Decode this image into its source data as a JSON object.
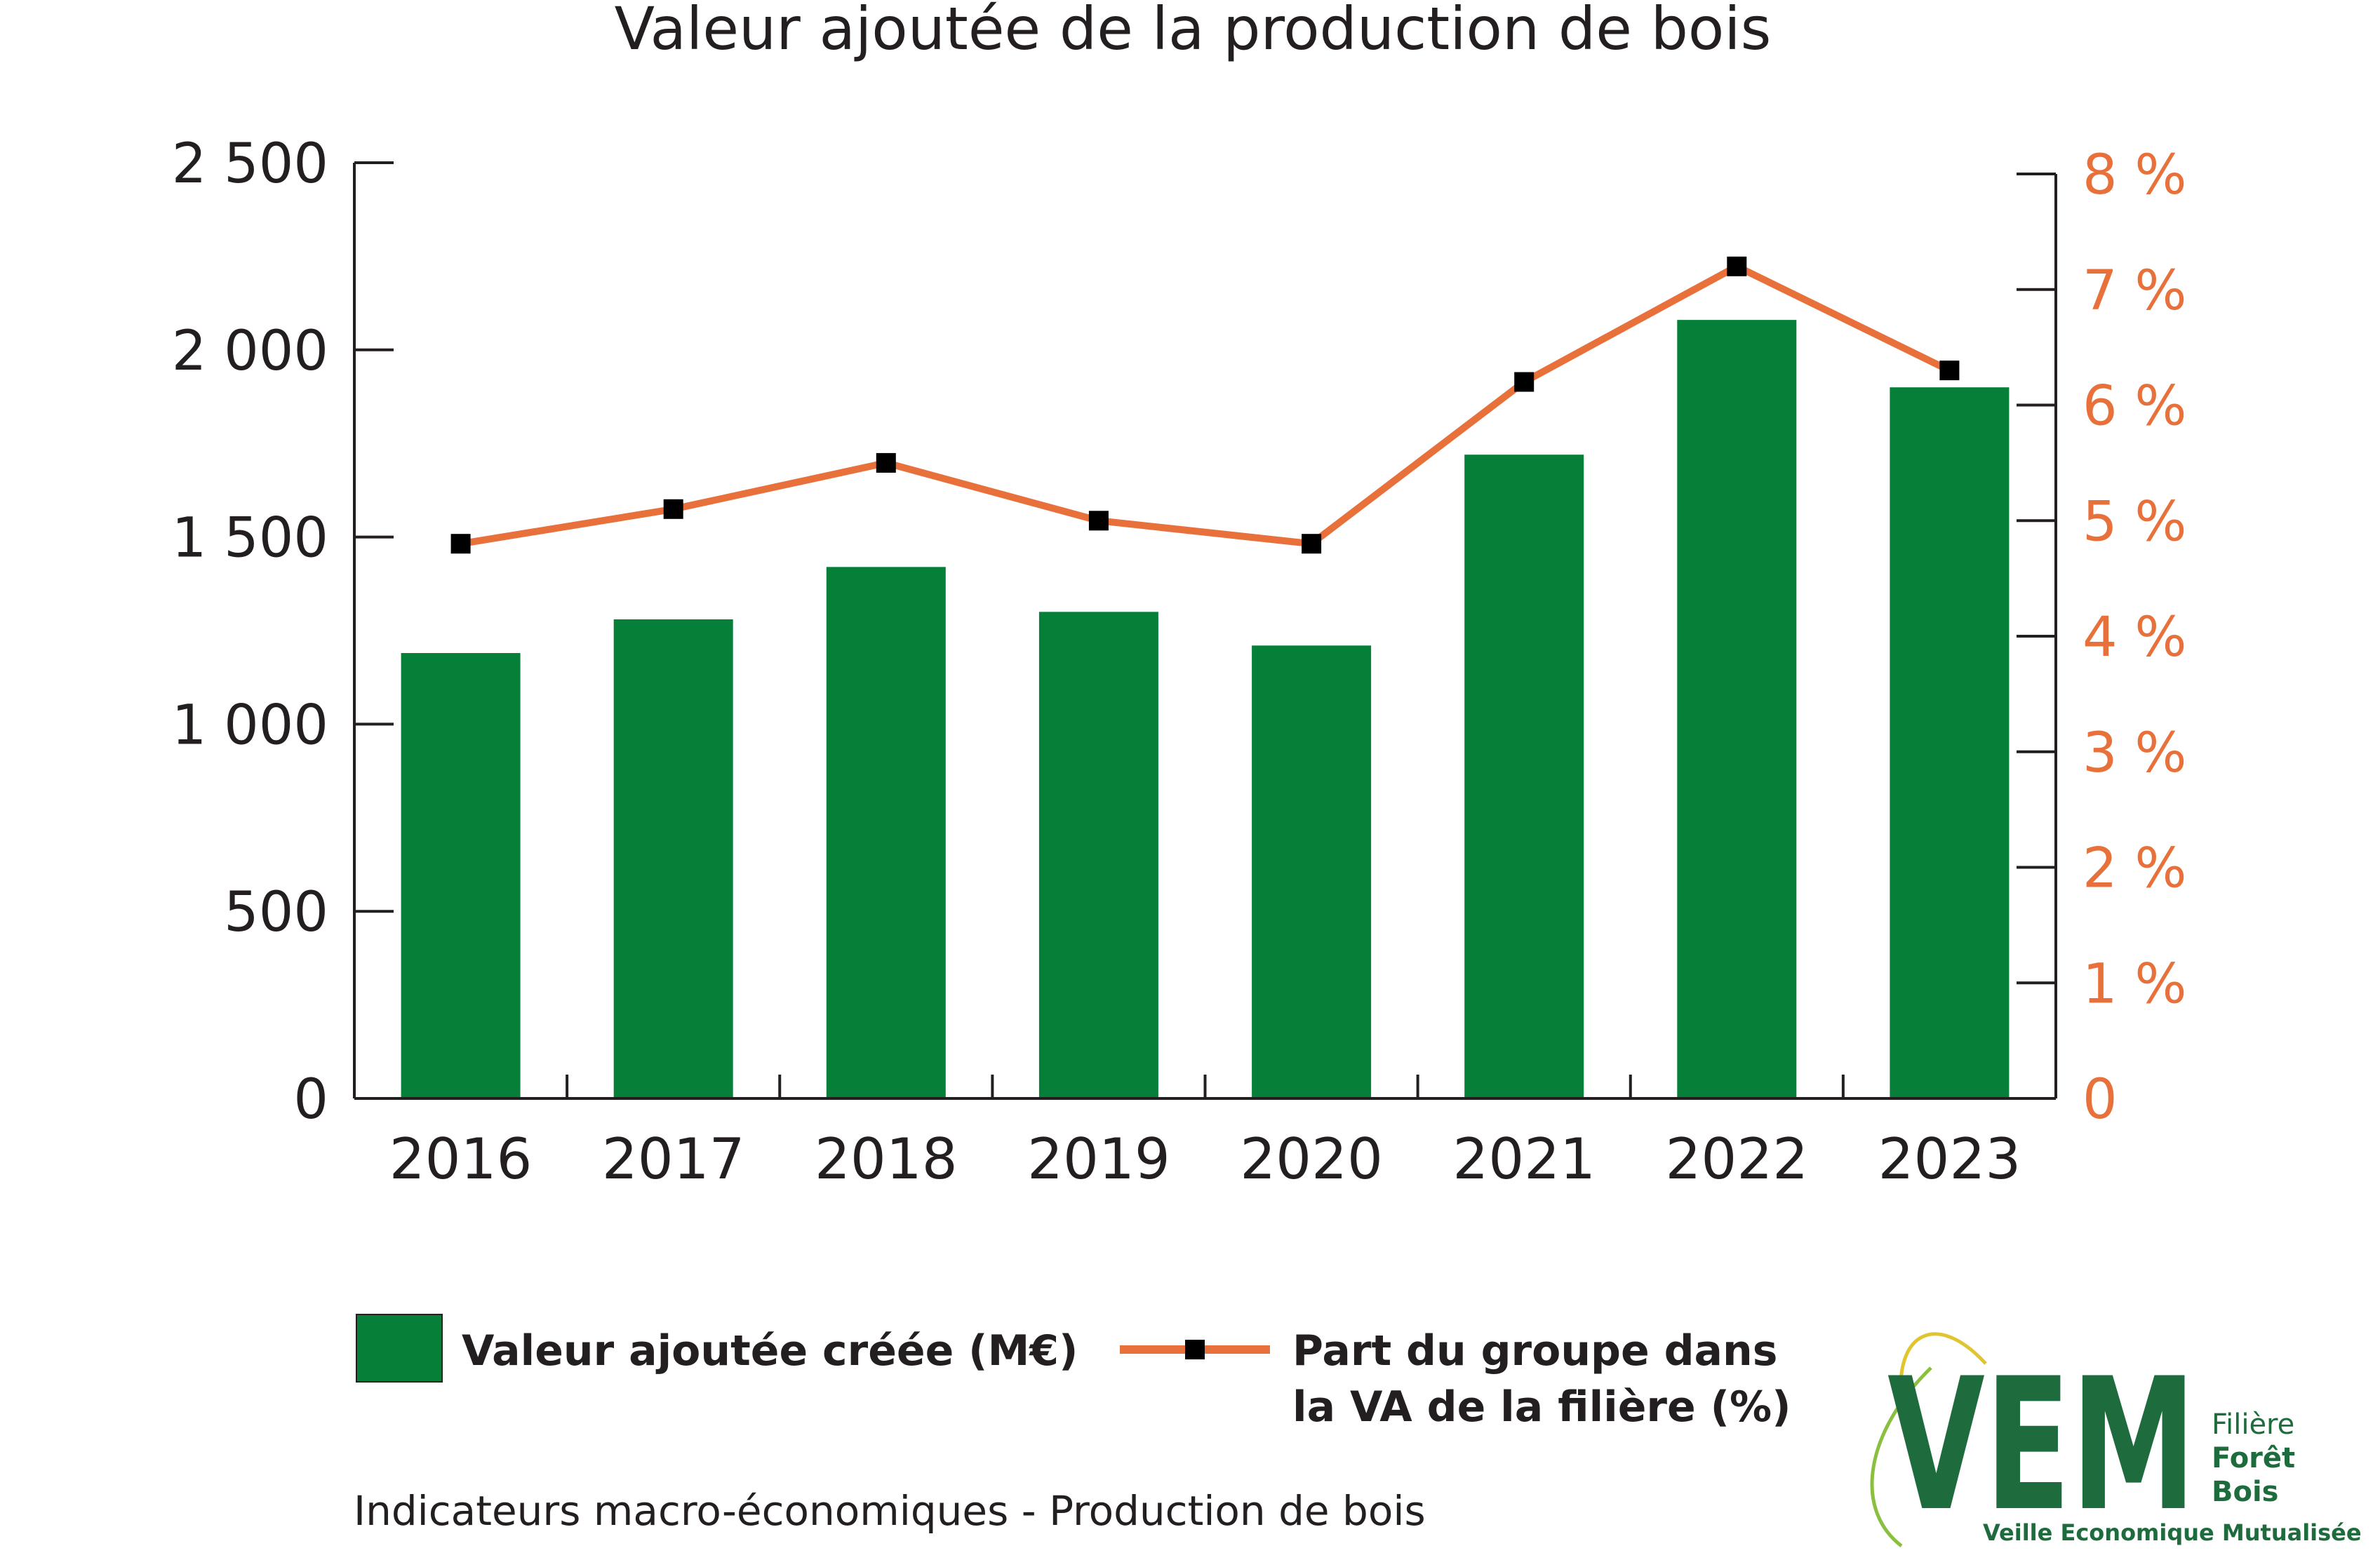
{
  "chart_data": {
    "type": "bar",
    "title": "Valeur ajoutée de la production de bois",
    "subtitle": "",
    "xlabel": "",
    "ylabel": "",
    "categories": [
      "2016",
      "2017",
      "2018",
      "2019",
      "2020",
      "2021",
      "2022",
      "2023"
    ],
    "series": [
      {
        "name": "Valeur ajoutée créée (M€)",
        "type": "bar",
        "axis": "left",
        "values": [
          1190,
          1280,
          1420,
          1300,
          1210,
          1720,
          2080,
          1900
        ],
        "color": "#067f38"
      },
      {
        "name": "Part du groupe dans la VA de la filière (%)",
        "type": "line",
        "axis": "right",
        "values": [
          4.8,
          5.1,
          5.5,
          5.0,
          4.8,
          6.2,
          7.2,
          6.3
        ],
        "color": "#e8703a",
        "marker_color": "#000000"
      }
    ],
    "ylim": [
      0,
      2500
    ],
    "y_ticks": [
      0,
      500,
      1000,
      1500,
      2000,
      2500
    ],
    "y_tick_labels": [
      "0",
      "500",
      "1 000",
      "1 500",
      "2 000",
      "2 500"
    ],
    "y2lim": [
      0,
      8
    ],
    "y2_ticks": [
      0,
      1,
      2,
      3,
      4,
      5,
      6,
      7,
      8
    ],
    "y2_tick_labels": [
      "0",
      "1 %",
      "2 %",
      "3 %",
      "4 %",
      "5 %",
      "6 %",
      "7 %",
      "8 %"
    ],
    "grid": false,
    "legend_position": "bottom",
    "legend": [
      {
        "label": "Valeur ajoutée créée (M€)",
        "kind": "bar"
      },
      {
        "label_line1": "Part du groupe dans",
        "label_line2": "la VA de la filière (%)",
        "kind": "line"
      }
    ]
  },
  "footer_text": "Indicateurs macro-économiques - Production de bois",
  "logo": {
    "letters": "VEM",
    "line1": "Filière",
    "line2": "Forêt",
    "line3": "Bois",
    "tagline": "Veille Economique Mutualisée",
    "color": "#1e6b3e",
    "accent": "#e0c530"
  },
  "colors": {
    "text": "#231f20",
    "axis": "#231f20",
    "y2_text": "#e8703a"
  }
}
